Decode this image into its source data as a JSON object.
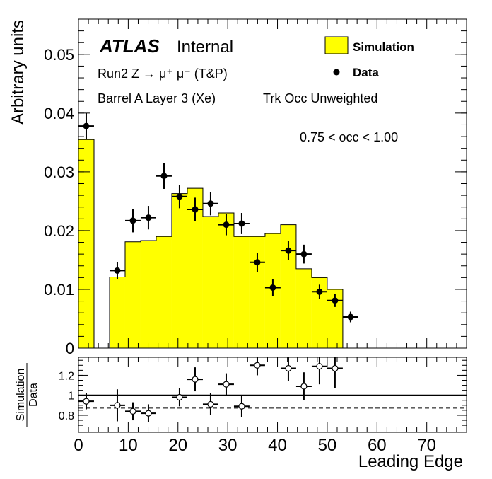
{
  "chart_data": [
    {
      "type": "bar",
      "panel": "main",
      "ylabel": "Arbitrary units",
      "xlim": [
        0,
        78
      ],
      "ylim": [
        0,
        0.056
      ],
      "y_ticks": [
        {
          "value": 0,
          "label": "0"
        },
        {
          "value": 0.01,
          "label": "0.01"
        },
        {
          "value": 0.02,
          "label": "0.02"
        },
        {
          "value": 0.03,
          "label": "0.03"
        },
        {
          "value": 0.04,
          "label": "0.04"
        },
        {
          "value": 0.05,
          "label": "0.05"
        }
      ],
      "annotations": {
        "atlas": "ATLAS",
        "internal": "Internal",
        "process": "Run2 Z → μ⁺ μ⁻ (T&P)",
        "region": "Barrel A Layer 3 (Xe)",
        "weighting": "Trk Occ Unweighted",
        "occupancy": "0.75 < occ < 1.00"
      },
      "legend": [
        {
          "name": "Simulation",
          "style": "filled box",
          "color": "#ffff00"
        },
        {
          "name": "Data",
          "style": "marker",
          "color": "#000000"
        }
      ],
      "legend_placement": "top-right",
      "series": [
        {
          "name": "Simulation",
          "kind": "histogram",
          "color": "#ffff00",
          "edges": [
            0,
            3.125,
            6.25,
            9.375,
            12.5,
            15.625,
            18.75,
            21.875,
            25,
            28.125,
            31.25,
            34.375,
            37.5,
            40.625,
            43.75,
            46.875,
            50,
            53.125,
            56.25,
            59.375,
            62.5,
            65.625,
            68.75,
            71.875,
            75,
            78.125
          ],
          "values": [
            0.0355,
            0,
            0.0121,
            0.0181,
            0.0183,
            0.019,
            0.0263,
            0.0272,
            0.0224,
            0.023,
            0.019,
            0.019,
            0.0195,
            0.021,
            0.0135,
            0.012,
            0.01,
            0,
            0,
            0,
            0,
            0,
            0,
            0,
            0
          ]
        },
        {
          "name": "Data",
          "kind": "points",
          "color": "#000000",
          "x": [
            1.56,
            7.81,
            10.94,
            14.06,
            17.19,
            20.31,
            23.44,
            26.56,
            29.69,
            32.81,
            35.94,
            39.06,
            42.19,
            45.31,
            48.44,
            51.56,
            54.69
          ],
          "y": [
            0.0378,
            0.0132,
            0.0217,
            0.0222,
            0.0293,
            0.0258,
            0.0236,
            0.0246,
            0.021,
            0.0212,
            0.0146,
            0.0103,
            0.0166,
            0.016,
            0.0096,
            0.0081,
            0.0053
          ],
          "yerr": [
            0.0022,
            0.0014,
            0.002,
            0.002,
            0.0022,
            0.002,
            0.002,
            0.002,
            0.0018,
            0.0018,
            0.0016,
            0.0014,
            0.0016,
            0.0016,
            0.0012,
            0.0011,
            0.0009
          ],
          "xerr": 1.56
        }
      ]
    },
    {
      "type": "scatter",
      "panel": "ratio",
      "ylabel": "Simulation / Data",
      "ylabel_numerator": "Simulation",
      "ylabel_denominator": "Data",
      "xlabel": "Leading Edge",
      "xlim": [
        0,
        78
      ],
      "ylim": [
        0.63,
        1.38
      ],
      "x_ticks": [
        {
          "value": 0,
          "label": "0"
        },
        {
          "value": 10,
          "label": "10"
        },
        {
          "value": 20,
          "label": "20"
        },
        {
          "value": 30,
          "label": "30"
        },
        {
          "value": 40,
          "label": "40"
        },
        {
          "value": 50,
          "label": "50"
        },
        {
          "value": 60,
          "label": "60"
        },
        {
          "value": 70,
          "label": "70"
        }
      ],
      "y_ticks": [
        {
          "value": 0.8,
          "label": "0.8"
        },
        {
          "value": 1.0,
          "label": "1"
        },
        {
          "value": 1.2,
          "label": "1.2"
        }
      ],
      "reference_lines": [
        {
          "value": 1.0,
          "style": "solid"
        },
        {
          "value": 0.875,
          "style": "dashed"
        }
      ],
      "series": [
        {
          "name": "Simulation / Data",
          "kind": "points",
          "marker": "open-circle",
          "x": [
            1.56,
            7.81,
            10.94,
            14.06,
            20.31,
            23.44,
            26.56,
            29.69,
            32.81,
            35.94,
            42.19,
            45.31,
            48.44,
            51.56
          ],
          "y": [
            0.94,
            0.9,
            0.84,
            0.82,
            0.98,
            1.16,
            0.91,
            1.11,
            0.89,
            1.3,
            1.27,
            1.09,
            1.29,
            1.27
          ],
          "yerr": [
            0.08,
            0.16,
            0.09,
            0.09,
            0.09,
            0.12,
            0.11,
            0.11,
            0.11,
            0.1,
            0.13,
            0.14,
            0.18,
            0.2
          ],
          "xerr": 1.56
        }
      ]
    }
  ]
}
